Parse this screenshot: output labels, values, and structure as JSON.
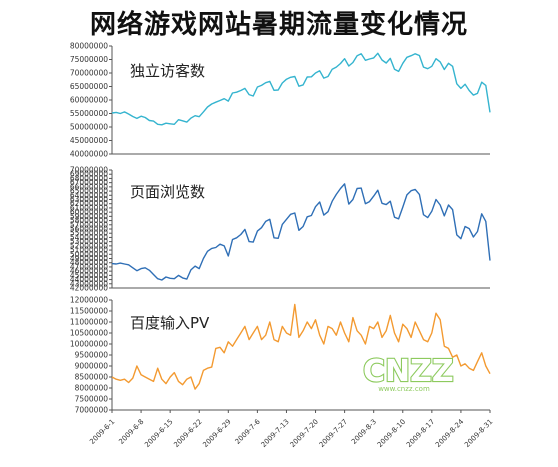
{
  "title": "网络游戏网站暑期流量变化情况",
  "watermark": {
    "text": "CNZZ",
    "subtext": "www.cnzz.com",
    "color": "#7ac143"
  },
  "colors": {
    "uv": "#35b4cf",
    "pv": "#2f6fb6",
    "baidu": "#f39a31",
    "axis": "#555555"
  },
  "chart_data": [
    {
      "type": "line",
      "title": "独立访客数",
      "ylim": [
        40000000,
        80000000
      ],
      "yticks": [
        40000000,
        45000000,
        50000000,
        55000000,
        60000000,
        65000000,
        70000000,
        75000000,
        80000000
      ],
      "x": [
        "2009-6-1",
        "2009-6-2",
        "2009-6-3",
        "2009-6-4",
        "2009-6-5",
        "2009-6-6",
        "2009-6-7",
        "2009-6-8",
        "2009-6-9",
        "2009-6-10",
        "2009-6-11",
        "2009-6-12",
        "2009-6-13",
        "2009-6-14",
        "2009-6-15",
        "2009-6-16",
        "2009-6-17",
        "2009-6-18",
        "2009-6-19",
        "2009-6-20",
        "2009-6-21",
        "2009-6-22",
        "2009-6-23",
        "2009-6-24",
        "2009-6-25",
        "2009-6-26",
        "2009-6-27",
        "2009-6-28",
        "2009-6-29",
        "2009-6-30",
        "2009-7-1",
        "2009-7-2",
        "2009-7-3",
        "2009-7-4",
        "2009-7-5",
        "2009-7-6",
        "2009-7-7",
        "2009-7-8",
        "2009-7-9",
        "2009-7-10",
        "2009-7-11",
        "2009-7-12",
        "2009-7-13",
        "2009-7-14",
        "2009-7-15",
        "2009-7-16",
        "2009-7-17",
        "2009-7-18",
        "2009-7-19",
        "2009-7-20",
        "2009-7-21",
        "2009-7-22",
        "2009-7-23",
        "2009-7-24",
        "2009-7-25",
        "2009-7-26",
        "2009-7-27",
        "2009-7-28",
        "2009-7-29",
        "2009-7-30",
        "2009-7-31",
        "2009-8-1",
        "2009-8-2",
        "2009-8-3",
        "2009-8-4",
        "2009-8-5",
        "2009-8-6",
        "2009-8-7",
        "2009-8-8",
        "2009-8-9",
        "2009-8-10",
        "2009-8-11",
        "2009-8-12",
        "2009-8-13",
        "2009-8-14",
        "2009-8-15",
        "2009-8-16",
        "2009-8-17",
        "2009-8-18",
        "2009-8-19",
        "2009-8-20",
        "2009-8-21",
        "2009-8-22",
        "2009-8-23",
        "2009-8-24",
        "2009-8-25",
        "2009-8-26",
        "2009-8-27",
        "2009-8-28",
        "2009-8-29",
        "2009-8-30",
        "2009-8-31"
      ],
      "series": [
        {
          "values": [
            55200000,
            55400000,
            55000000,
            55600000,
            54800000,
            53900000,
            53200000,
            54000000,
            53500000,
            52400000,
            52200000,
            51000000,
            50800000,
            51400000,
            51200000,
            51000000,
            52700000,
            52300000,
            51800000,
            53300000,
            54200000,
            53800000,
            55600000,
            57400000,
            58500000,
            59200000,
            59800000,
            60500000,
            59600000,
            62600000,
            62900000,
            63500000,
            64300000,
            62000000,
            61500000,
            64800000,
            65400000,
            66400000,
            66900000,
            63600000,
            63700000,
            66300000,
            67700000,
            68400000,
            68700000,
            65100000,
            65600000,
            68500000,
            68600000,
            70000000,
            70800000,
            68100000,
            68700000,
            71400000,
            72200000,
            73500000,
            75300000,
            72600000,
            73900000,
            76400000,
            77100000,
            74700000,
            75200000,
            75600000,
            77300000,
            74800000,
            73700000,
            75400000,
            71400000,
            70600000,
            73600000,
            75800000,
            76400000,
            77100000,
            76500000,
            72200000,
            71600000,
            72500000,
            75300000,
            74100000,
            71300000,
            73600000,
            72500000,
            66000000,
            64300000,
            65800000,
            63500000,
            61800000,
            62500000,
            66600000,
            65400000,
            55400000
          ]
        }
      ]
    },
    {
      "type": "line",
      "title": "页面浏览数",
      "ylim": [
        42000000,
        70000000
      ],
      "yticks": [
        42000000,
        43000000,
        44000000,
        45000000,
        46000000,
        47000000,
        48000000,
        49000000,
        50000000,
        51000000,
        52000000,
        53000000,
        54000000,
        55000000,
        56000000,
        57000000,
        58000000,
        59000000,
        60000000,
        61000000,
        62000000,
        63000000,
        64000000,
        65000000,
        66000000,
        67000000,
        68000000,
        69000000,
        70000000
      ],
      "x": [
        "2009-6-1",
        "2009-6-2",
        "2009-6-3",
        "2009-6-4",
        "2009-6-5",
        "2009-6-6",
        "2009-6-7",
        "2009-6-8",
        "2009-6-9",
        "2009-6-10",
        "2009-6-11",
        "2009-6-12",
        "2009-6-13",
        "2009-6-14",
        "2009-6-15",
        "2009-6-16",
        "2009-6-17",
        "2009-6-18",
        "2009-6-19",
        "2009-6-20",
        "2009-6-21",
        "2009-6-22",
        "2009-6-23",
        "2009-6-24",
        "2009-6-25",
        "2009-6-26",
        "2009-6-27",
        "2009-6-28",
        "2009-6-29",
        "2009-6-30",
        "2009-7-1",
        "2009-7-2",
        "2009-7-3",
        "2009-7-4",
        "2009-7-5",
        "2009-7-6",
        "2009-7-7",
        "2009-7-8",
        "2009-7-9",
        "2009-7-10",
        "2009-7-11",
        "2009-7-12",
        "2009-7-13",
        "2009-7-14",
        "2009-7-15",
        "2009-7-16",
        "2009-7-17",
        "2009-7-18",
        "2009-7-19",
        "2009-7-20",
        "2009-7-21",
        "2009-7-22",
        "2009-7-23",
        "2009-7-24",
        "2009-7-25",
        "2009-7-26",
        "2009-7-27",
        "2009-7-28",
        "2009-7-29",
        "2009-7-30",
        "2009-7-31",
        "2009-8-1",
        "2009-8-2",
        "2009-8-3",
        "2009-8-4",
        "2009-8-5",
        "2009-8-6",
        "2009-8-7",
        "2009-8-8",
        "2009-8-9",
        "2009-8-10",
        "2009-8-11",
        "2009-8-12",
        "2009-8-13",
        "2009-8-14",
        "2009-8-15",
        "2009-8-16",
        "2009-8-17",
        "2009-8-18",
        "2009-8-19",
        "2009-8-20",
        "2009-8-21",
        "2009-8-22",
        "2009-8-23",
        "2009-8-24",
        "2009-8-25",
        "2009-8-26",
        "2009-8-27",
        "2009-8-28",
        "2009-8-29",
        "2009-8-30",
        "2009-8-31"
      ],
      "series": [
        {
          "values": [
            47800000,
            47700000,
            47900000,
            47700000,
            47500000,
            46800000,
            46100000,
            46600000,
            46800000,
            46200000,
            45200000,
            44200000,
            43900000,
            44600000,
            44300000,
            44200000,
            45000000,
            44400000,
            44100000,
            46300000,
            47200000,
            46600000,
            49000000,
            50700000,
            51400000,
            51600000,
            52400000,
            52000000,
            49600000,
            53500000,
            53900000,
            54700000,
            55900000,
            53000000,
            52900000,
            55500000,
            56300000,
            57800000,
            58300000,
            53900000,
            53800000,
            57100000,
            58300000,
            59500000,
            59800000,
            55700000,
            56600000,
            58900000,
            59200000,
            61300000,
            62400000,
            59300000,
            60100000,
            62600000,
            64200000,
            65600000,
            66700000,
            61900000,
            63000000,
            65600000,
            65700000,
            62000000,
            62500000,
            63800000,
            65200000,
            62100000,
            61800000,
            62600000,
            58800000,
            58400000,
            61200000,
            64100000,
            65100000,
            65400000,
            64200000,
            59400000,
            58700000,
            60200000,
            63000000,
            61700000,
            59100000,
            61700000,
            60600000,
            54600000,
            53700000,
            56600000,
            56100000,
            54100000,
            55400000,
            59600000,
            57800000,
            48500000
          ]
        }
      ]
    },
    {
      "type": "line",
      "title": "百度输入PV",
      "ylim": [
        7000000,
        12000000
      ],
      "yticks": [
        7000000,
        7500000,
        8000000,
        8500000,
        9000000,
        9500000,
        10000000,
        10500000,
        11000000,
        11500000,
        12000000
      ],
      "x": [
        "2009-6-1",
        "2009-6-2",
        "2009-6-3",
        "2009-6-4",
        "2009-6-5",
        "2009-6-6",
        "2009-6-7",
        "2009-6-8",
        "2009-6-9",
        "2009-6-10",
        "2009-6-11",
        "2009-6-12",
        "2009-6-13",
        "2009-6-14",
        "2009-6-15",
        "2009-6-16",
        "2009-6-17",
        "2009-6-18",
        "2009-6-19",
        "2009-6-20",
        "2009-6-21",
        "2009-6-22",
        "2009-6-23",
        "2009-6-24",
        "2009-6-25",
        "2009-6-26",
        "2009-6-27",
        "2009-6-28",
        "2009-6-29",
        "2009-6-30",
        "2009-7-1",
        "2009-7-2",
        "2009-7-3",
        "2009-7-4",
        "2009-7-5",
        "2009-7-6",
        "2009-7-7",
        "2009-7-8",
        "2009-7-9",
        "2009-7-10",
        "2009-7-11",
        "2009-7-12",
        "2009-7-13",
        "2009-7-14",
        "2009-7-15",
        "2009-7-16",
        "2009-7-17",
        "2009-7-18",
        "2009-7-19",
        "2009-7-20",
        "2009-7-21",
        "2009-7-22",
        "2009-7-23",
        "2009-7-24",
        "2009-7-25",
        "2009-7-26",
        "2009-7-27",
        "2009-7-28",
        "2009-7-29",
        "2009-7-30",
        "2009-7-31",
        "2009-8-1",
        "2009-8-2",
        "2009-8-3",
        "2009-8-4",
        "2009-8-5",
        "2009-8-6",
        "2009-8-7",
        "2009-8-8",
        "2009-8-9",
        "2009-8-10",
        "2009-8-11",
        "2009-8-12",
        "2009-8-13",
        "2009-8-14",
        "2009-8-15",
        "2009-8-16",
        "2009-8-17",
        "2009-8-18",
        "2009-8-19",
        "2009-8-20",
        "2009-8-21",
        "2009-8-22",
        "2009-8-23",
        "2009-8-24",
        "2009-8-25",
        "2009-8-26",
        "2009-8-27",
        "2009-8-28",
        "2009-8-29",
        "2009-8-30",
        "2009-8-31"
      ],
      "series": [
        {
          "values": [
            8500000,
            8400000,
            8350000,
            8400000,
            8250000,
            8450000,
            9000000,
            8600000,
            8500000,
            8400000,
            8300000,
            8900000,
            8400000,
            8200000,
            8500000,
            8700000,
            8300000,
            8150000,
            8400000,
            8500000,
            7950000,
            8200000,
            8800000,
            8900000,
            8950000,
            9800000,
            9850000,
            9600000,
            10100000,
            9900000,
            10200000,
            10500000,
            10800000,
            10200000,
            10500000,
            10800000,
            10200000,
            10400000,
            11000000,
            10200000,
            10100000,
            10800000,
            10500000,
            10400000,
            11800000,
            10300000,
            10600000,
            11000000,
            10700000,
            11100000,
            10400000,
            10000000,
            10800000,
            10700000,
            10400000,
            11000000,
            10500000,
            10100000,
            11200000,
            10600000,
            10400000,
            10000000,
            10800000,
            10700000,
            11000000,
            10300000,
            10600000,
            11300000,
            10500000,
            10100000,
            10900000,
            10700000,
            10300000,
            11000000,
            10600000,
            10200000,
            10100000,
            10500000,
            11400000,
            11100000,
            9900000,
            9800000,
            9400000,
            9500000,
            9000000,
            9100000,
            8900000,
            8800000,
            9200000,
            9600000,
            9000000,
            8650000
          ]
        }
      ]
    }
  ],
  "x_tick_labels": [
    "2009-6-1",
    "2009-6-8",
    "2009-6-15",
    "2009-6-22",
    "2009-6-29",
    "2009-7-6",
    "2009-7-13",
    "2009-7-20",
    "2009-7-27",
    "2009-8-3",
    "2009-8-10",
    "2009-8-17",
    "2009-8-24",
    "2009-8-31"
  ]
}
